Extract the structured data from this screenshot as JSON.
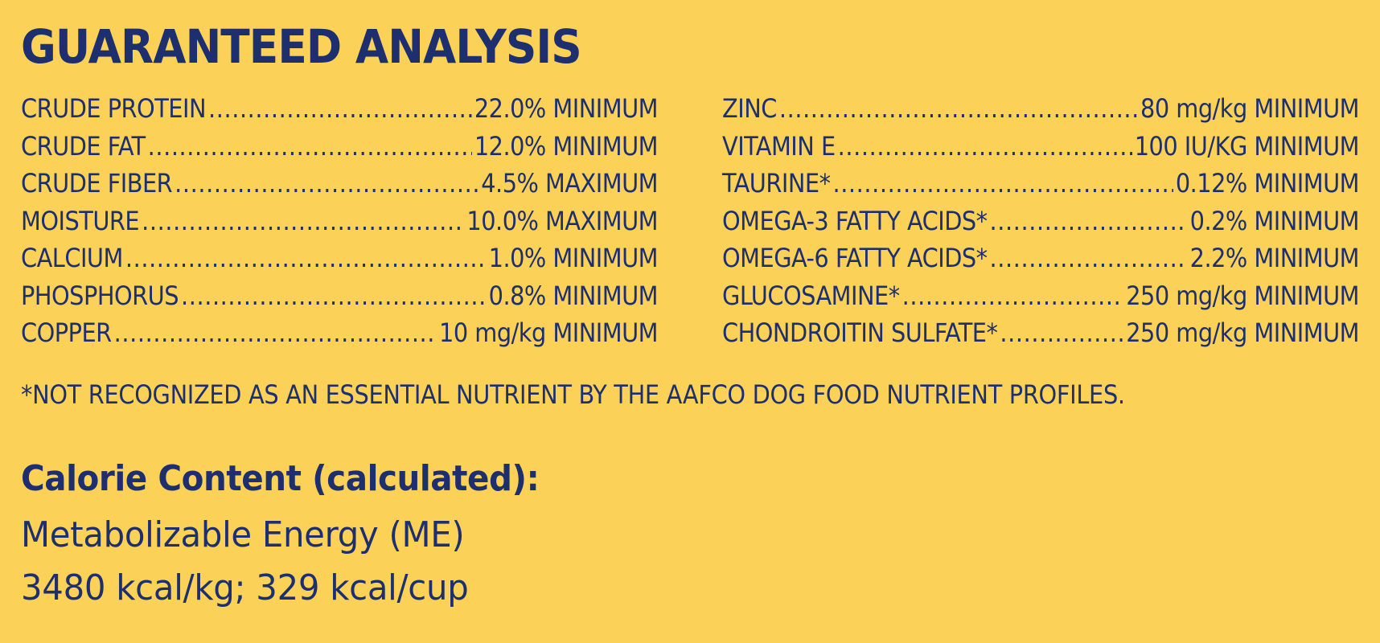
{
  "panel": {
    "title": "GUARANTEED ANALYSIS",
    "background_color": "#fbd257",
    "text_color": "#1d2f6f"
  },
  "analysis": {
    "left": [
      {
        "name": "CRUDE PROTEIN",
        "value": "22.0% MINIMUM"
      },
      {
        "name": "CRUDE FAT",
        "value": "12.0% MINIMUM"
      },
      {
        "name": "CRUDE FIBER",
        "value": "4.5% MAXIMUM"
      },
      {
        "name": "MOISTURE",
        "value": "10.0% MAXIMUM"
      },
      {
        "name": "CALCIUM",
        "value": "1.0% MINIMUM"
      },
      {
        "name": "PHOSPHORUS",
        "value": "0.8% MINIMUM"
      },
      {
        "name": "COPPER",
        "value": "10 mg/kg MINIMUM"
      }
    ],
    "right": [
      {
        "name": "ZINC",
        "value": "80 mg/kg MINIMUM"
      },
      {
        "name": "VITAMIN E",
        "value": "100 IU/KG MINIMUM"
      },
      {
        "name": "TAURINE*",
        "value": "0.12% MINIMUM"
      },
      {
        "name": "OMEGA-3 FATTY ACIDS*",
        "value": "0.2% MINIMUM"
      },
      {
        "name": "OMEGA-6 FATTY ACIDS*",
        "value": "2.2% MINIMUM"
      },
      {
        "name": "GLUCOSAMINE*",
        "value": "250 mg/kg MINIMUM"
      },
      {
        "name": "CHONDROITIN SULFATE*",
        "value": "250 mg/kg MINIMUM"
      }
    ]
  },
  "footnote": "*NOT RECOGNIZED AS AN ESSENTIAL NUTRIENT BY THE AAFCO DOG FOOD NUTRIENT PROFILES.",
  "calorie": {
    "heading": "Calorie Content (calculated):",
    "line1": "Metabolizable Energy (ME)",
    "line2": "3480 kcal/kg; 329 kcal/cup"
  }
}
